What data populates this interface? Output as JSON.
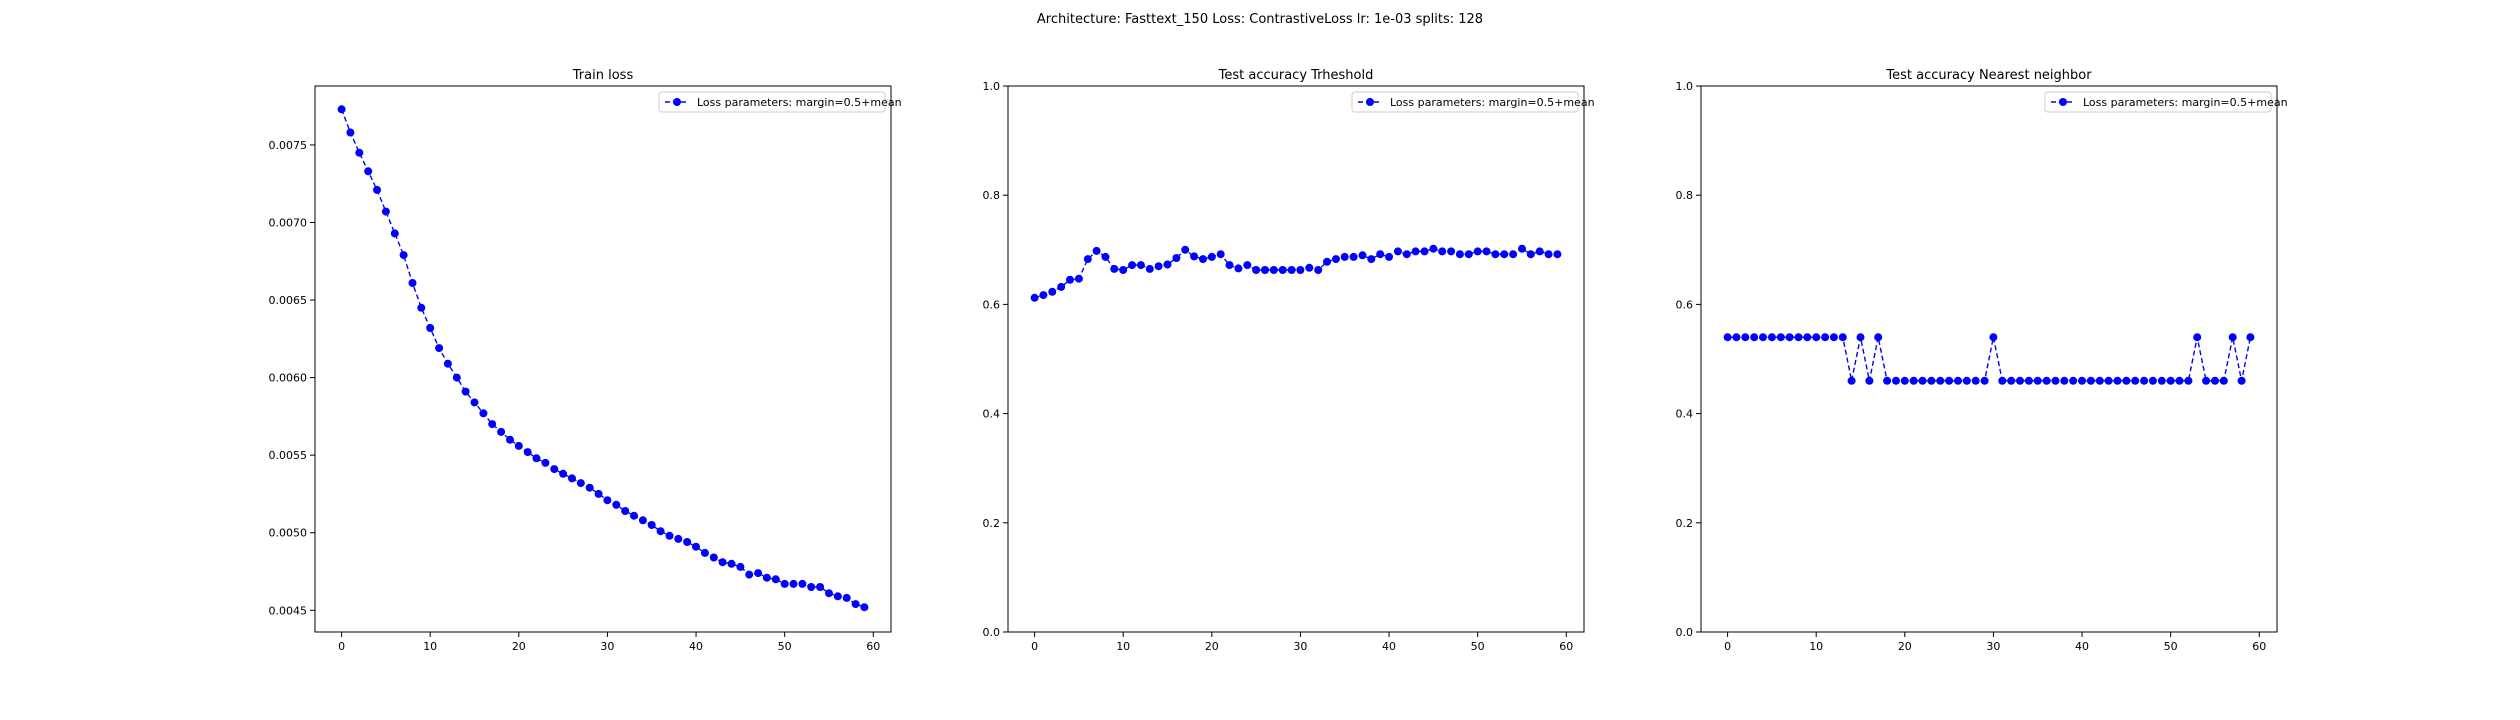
{
  "figure": {
    "suptitle": "Architecture: Fasttext_150 Loss: ContrastiveLoss lr: 1e-03 splits: 128"
  },
  "chart_data": [
    {
      "type": "line",
      "title": "Train loss",
      "xlabel": "",
      "ylabel": "",
      "xlim": [
        -3,
        62
      ],
      "ylim": [
        0.00436,
        0.00788
      ],
      "xticks": [
        0,
        10,
        20,
        30,
        40,
        50,
        60
      ],
      "yticks": [
        0.0045,
        0.005,
        0.0055,
        0.006,
        0.0065,
        0.007,
        0.0075
      ],
      "ytick_labels": [
        "0.0045",
        "0.0050",
        "0.0055",
        "0.0060",
        "0.0065",
        "0.0070",
        "0.0075"
      ],
      "legend_position": "top-right",
      "color": "#0000ff",
      "marker": "circle",
      "linestyle": "dashed",
      "series": [
        {
          "name": "Loss parameters: margin=0.5+mean",
          "x": [
            0,
            1,
            2,
            3,
            4,
            5,
            6,
            7,
            8,
            9,
            10,
            11,
            12,
            13,
            14,
            15,
            16,
            17,
            18,
            19,
            20,
            21,
            22,
            23,
            24,
            25,
            26,
            27,
            28,
            29,
            30,
            31,
            32,
            33,
            34,
            35,
            36,
            37,
            38,
            39,
            40,
            41,
            42,
            43,
            44,
            45,
            46,
            47,
            48,
            49,
            50,
            51,
            52,
            53,
            54,
            55,
            56,
            57,
            58,
            59
          ],
          "values": [
            0.00773,
            0.00758,
            0.00745,
            0.00733,
            0.00721,
            0.00707,
            0.00693,
            0.00679,
            0.00661,
            0.00645,
            0.00632,
            0.00619,
            0.00609,
            0.006,
            0.00591,
            0.00584,
            0.00577,
            0.0057,
            0.00565,
            0.0056,
            0.00556,
            0.00552,
            0.00548,
            0.00545,
            0.00541,
            0.00538,
            0.00535,
            0.00532,
            0.00529,
            0.00525,
            0.00521,
            0.00518,
            0.00514,
            0.00511,
            0.00508,
            0.00505,
            0.00501,
            0.00498,
            0.00496,
            0.00494,
            0.00491,
            0.00487,
            0.00484,
            0.00481,
            0.0048,
            0.00478,
            0.00473,
            0.00474,
            0.00471,
            0.0047,
            0.00467,
            0.00467,
            0.00467,
            0.00465,
            0.00465,
            0.00461,
            0.00459,
            0.00458,
            0.00454,
            0.00452
          ]
        }
      ]
    },
    {
      "type": "line",
      "title": "Test accuracy Trheshold",
      "xlabel": "",
      "ylabel": "",
      "xlim": [
        -3,
        62
      ],
      "ylim": [
        0,
        1
      ],
      "xticks": [
        0,
        10,
        20,
        30,
        40,
        50,
        60
      ],
      "yticks": [
        0,
        0.2,
        0.4,
        0.6,
        0.8,
        1.0
      ],
      "ytick_labels": [
        "0.0",
        "0.2",
        "0.4",
        "0.6",
        "0.8",
        "1.0"
      ],
      "legend_position": "top-right",
      "color": "#0000ff",
      "marker": "circle",
      "linestyle": "dashed",
      "series": [
        {
          "name": "Loss parameters: margin=0.5+mean",
          "x": [
            0,
            1,
            2,
            3,
            4,
            5,
            6,
            7,
            8,
            9,
            10,
            11,
            12,
            13,
            14,
            15,
            16,
            17,
            18,
            19,
            20,
            21,
            22,
            23,
            24,
            25,
            26,
            27,
            28,
            29,
            30,
            31,
            32,
            33,
            34,
            35,
            36,
            37,
            38,
            39,
            40,
            41,
            42,
            43,
            44,
            45,
            46,
            47,
            48,
            49,
            50,
            51,
            52,
            53,
            54,
            55,
            56,
            57,
            58,
            59
          ],
          "values": [
            0.612,
            0.617,
            0.623,
            0.632,
            0.645,
            0.647,
            0.683,
            0.698,
            0.687,
            0.665,
            0.663,
            0.672,
            0.672,
            0.665,
            0.67,
            0.673,
            0.685,
            0.7,
            0.688,
            0.683,
            0.687,
            0.692,
            0.672,
            0.666,
            0.672,
            0.663,
            0.663,
            0.663,
            0.663,
            0.663,
            0.663,
            0.667,
            0.663,
            0.678,
            0.683,
            0.687,
            0.687,
            0.69,
            0.683,
            0.692,
            0.687,
            0.697,
            0.692,
            0.697,
            0.697,
            0.702,
            0.697,
            0.697,
            0.692,
            0.692,
            0.697,
            0.697,
            0.692,
            0.692,
            0.692,
            0.702,
            0.692,
            0.697,
            0.692,
            0.692
          ]
        }
      ]
    },
    {
      "type": "line",
      "title": "Test accuracy Nearest neighbor",
      "xlabel": "",
      "ylabel": "",
      "xlim": [
        -3,
        62
      ],
      "ylim": [
        0,
        1
      ],
      "xticks": [
        0,
        10,
        20,
        30,
        40,
        50,
        60
      ],
      "yticks": [
        0,
        0.2,
        0.4,
        0.6,
        0.8,
        1.0
      ],
      "ytick_labels": [
        "0.0",
        "0.2",
        "0.4",
        "0.6",
        "0.8",
        "1.0"
      ],
      "legend_position": "top-right",
      "color": "#0000ff",
      "marker": "circle",
      "linestyle": "dashed",
      "series": [
        {
          "name": "Loss parameters: margin=0.5+mean",
          "x": [
            0,
            1,
            2,
            3,
            4,
            5,
            6,
            7,
            8,
            9,
            10,
            11,
            12,
            13,
            14,
            15,
            16,
            17,
            18,
            19,
            20,
            21,
            22,
            23,
            24,
            25,
            26,
            27,
            28,
            29,
            30,
            31,
            32,
            33,
            34,
            35,
            36,
            37,
            38,
            39,
            40,
            41,
            42,
            43,
            44,
            45,
            46,
            47,
            48,
            49,
            50,
            51,
            52,
            53,
            54,
            55,
            56,
            57,
            58,
            59
          ],
          "values": [
            0.54,
            0.54,
            0.54,
            0.54,
            0.54,
            0.54,
            0.54,
            0.54,
            0.54,
            0.54,
            0.54,
            0.54,
            0.54,
            0.54,
            0.46,
            0.54,
            0.46,
            0.54,
            0.46,
            0.46,
            0.46,
            0.46,
            0.46,
            0.46,
            0.46,
            0.46,
            0.46,
            0.46,
            0.46,
            0.46,
            0.54,
            0.46,
            0.46,
            0.46,
            0.46,
            0.46,
            0.46,
            0.46,
            0.46,
            0.46,
            0.46,
            0.46,
            0.46,
            0.46,
            0.46,
            0.46,
            0.46,
            0.46,
            0.46,
            0.46,
            0.46,
            0.46,
            0.46,
            0.54,
            0.46,
            0.46,
            0.46,
            0.54,
            0.46,
            0.54
          ]
        }
      ]
    }
  ]
}
